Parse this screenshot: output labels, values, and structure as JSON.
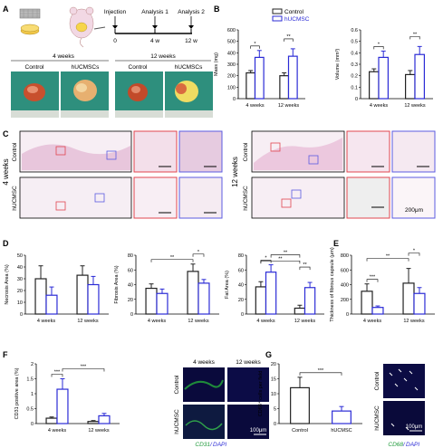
{
  "panels": {
    "A": "A",
    "B": "B",
    "C": "C",
    "D": "D",
    "E": "E",
    "F": "F",
    "G": "G"
  },
  "panel_a": {
    "timeline": {
      "injection": "Injection",
      "analysis1": "Analysis 1",
      "analysis2": "Analysis 2",
      "t0": "0",
      "t1": "4 w",
      "t2": "12 w"
    },
    "groups": {
      "w4": "4 weeks",
      "w12": "12 weeks"
    },
    "cols": [
      "Control",
      "hUCMSCs",
      "Control",
      "hUCMSCs"
    ]
  },
  "legend": {
    "control": "Control",
    "hucmsc": "hUCMSC"
  },
  "panel_c": {
    "w4": "4 weeks",
    "w12": "12 weeks",
    "control": "Control",
    "hucmsc": "hUCMSC",
    "scale": "200μm"
  },
  "panel_f": {
    "w4": "4 weeks",
    "w12": "12 weeks",
    "control": "Control",
    "hucmsc": "hUCMSC",
    "scale": "100μm",
    "stain_a": "CD31",
    "stain_sep": "/",
    "stain_b": "DAPI"
  },
  "panel_g": {
    "control": "Control",
    "hucmsc": "hUCMSC",
    "scale": "100μm",
    "stain_a": "CD68",
    "stain_sep": "/",
    "stain_b": "DAPI"
  },
  "colors": {
    "control": "#222222",
    "hucmsc": "#2b2bd6",
    "red_box": "#e0454f",
    "blue_box": "#5b5be0"
  },
  "chart_data": [
    {
      "id": "mass",
      "type": "bar",
      "ylabel": "Mass (mg)",
      "categories": [
        "4 weeks",
        "12 weeks"
      ],
      "ylim": [
        0,
        600
      ],
      "yticks": [
        0,
        100,
        200,
        300,
        400,
        500,
        600
      ],
      "series": [
        {
          "name": "Control",
          "values": [
            225,
            200
          ],
          "err": [
            20,
            25
          ]
        },
        {
          "name": "hUCMSC",
          "values": [
            360,
            370
          ],
          "err": [
            60,
            65
          ]
        }
      ],
      "sig": [
        {
          "text": "*",
          "ci": 0
        },
        {
          "text": "**",
          "ci": 1
        }
      ]
    },
    {
      "id": "volume",
      "type": "bar",
      "ylabel": "Volume (mm³)",
      "categories": [
        "4 weeks",
        "12 weeks"
      ],
      "ylim": [
        0,
        0.6
      ],
      "yticks": [
        0,
        0.1,
        0.2,
        0.3,
        0.4,
        0.5,
        0.6
      ],
      "series": [
        {
          "name": "Control",
          "values": [
            0.235,
            0.21
          ],
          "err": [
            0.025,
            0.035
          ]
        },
        {
          "name": "hUCMSC",
          "values": [
            0.36,
            0.385
          ],
          "err": [
            0.055,
            0.07
          ]
        }
      ],
      "sig": [
        {
          "text": "*",
          "ci": 0
        },
        {
          "text": "**",
          "ci": 1
        }
      ]
    },
    {
      "id": "necrosis",
      "type": "bar",
      "ylabel": "Necrosis Area (%)",
      "categories": [
        "4 weeks",
        "12 weeks"
      ],
      "ylim": [
        0,
        50
      ],
      "yticks": [
        0,
        10,
        20,
        30,
        40,
        50
      ],
      "series": [
        {
          "name": "Control",
          "values": [
            30,
            33
          ],
          "err": [
            11,
            8
          ]
        },
        {
          "name": "hUCMSC",
          "values": [
            16,
            25
          ],
          "err": [
            7,
            7
          ]
        }
      ],
      "sig": []
    },
    {
      "id": "fibrosis",
      "type": "bar",
      "ylabel": "Fibrosis Area (%)",
      "categories": [
        "4 weeks",
        "12 weeks"
      ],
      "ylim": [
        0,
        80
      ],
      "yticks": [
        0,
        20,
        40,
        60,
        80
      ],
      "series": [
        {
          "name": "Control",
          "values": [
            35,
            58
          ],
          "err": [
            6,
            10
          ]
        },
        {
          "name": "hUCMSC",
          "values": [
            28,
            42
          ],
          "err": [
            6,
            5
          ]
        }
      ],
      "sig": [
        {
          "text": "**",
          "a": [
            0,
            0
          ],
          "b": [
            1,
            0
          ]
        },
        {
          "text": "*",
          "a": [
            1,
            0
          ],
          "b": [
            1,
            1
          ]
        }
      ]
    },
    {
      "id": "fat",
      "type": "bar",
      "ylabel": "Fat Area (%)",
      "categories": [
        "4 weeks",
        "12 weeks"
      ],
      "ylim": [
        0,
        80
      ],
      "yticks": [
        0,
        20,
        40,
        60,
        80
      ],
      "series": [
        {
          "name": "Control",
          "values": [
            37,
            8
          ],
          "err": [
            7,
            4
          ]
        },
        {
          "name": "hUCMSC",
          "values": [
            57,
            36
          ],
          "err": [
            10,
            7
          ]
        }
      ],
      "sig": [
        {
          "text": "*",
          "a": [
            0,
            0
          ],
          "b": [
            0,
            1
          ]
        },
        {
          "text": "**",
          "a": [
            0,
            1
          ],
          "b": [
            1,
            0
          ]
        },
        {
          "text": "**",
          "a": [
            1,
            0
          ],
          "b": [
            1,
            1
          ]
        },
        {
          "text": "**",
          "a": [
            0,
            0
          ],
          "b": [
            1,
            0
          ]
        }
      ]
    },
    {
      "id": "capsule",
      "type": "bar",
      "ylabel": "Thickness of fibrous capsule (μm)",
      "categories": [
        "4 weeks",
        "12 weeks"
      ],
      "ylim": [
        0,
        800
      ],
      "yticks": [
        0,
        200,
        400,
        600,
        800
      ],
      "series": [
        {
          "name": "Control",
          "values": [
            310,
            420
          ],
          "err": [
            100,
            200
          ]
        },
        {
          "name": "hUCMSC",
          "values": [
            90,
            280
          ],
          "err": [
            20,
            80
          ]
        }
      ],
      "sig": [
        {
          "text": "***",
          "a": [
            0,
            0
          ],
          "b": [
            0,
            1
          ]
        },
        {
          "text": "**",
          "a": [
            0,
            0
          ],
          "b": [
            1,
            0
          ]
        },
        {
          "text": "*",
          "a": [
            1,
            0
          ],
          "b": [
            1,
            1
          ]
        }
      ]
    },
    {
      "id": "cd31",
      "type": "bar",
      "ylabel": "CD31 positive area (%)",
      "categories": [
        "4 weeks",
        "12 weeks"
      ],
      "ylim": [
        0,
        2.0
      ],
      "yticks": [
        0,
        0.5,
        1.0,
        1.5,
        2.0
      ],
      "series": [
        {
          "name": "Control",
          "values": [
            0.18,
            0.07
          ],
          "err": [
            0.04,
            0.03
          ]
        },
        {
          "name": "hUCMSC",
          "values": [
            1.15,
            0.26
          ],
          "err": [
            0.35,
            0.08
          ]
        }
      ],
      "sig": [
        {
          "text": "***",
          "a": [
            0,
            0
          ],
          "b": [
            0,
            1
          ]
        },
        {
          "text": "***",
          "a": [
            0,
            1
          ],
          "b": [
            1,
            1
          ]
        }
      ]
    },
    {
      "id": "cd68",
      "type": "bar",
      "ylabel": "CD68⁺ cells per field",
      "categories": [
        "Control",
        "hUCMSC"
      ],
      "ylim": [
        0,
        20
      ],
      "yticks": [
        0,
        5,
        10,
        15,
        20
      ],
      "series": [
        {
          "name": "",
          "values": [
            12,
            4.2
          ],
          "err": [
            3.5,
            1.5
          ]
        }
      ],
      "sig": [
        {
          "text": "***",
          "a": [
            0,
            0
          ],
          "b": [
            1,
            0
          ]
        }
      ]
    }
  ]
}
